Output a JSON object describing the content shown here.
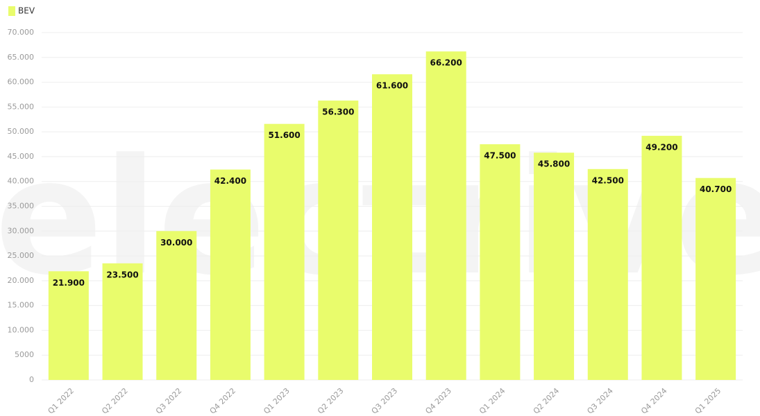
{
  "chart_data": {
    "type": "bar",
    "watermark": "electrive",
    "categories": [
      "Q1 2022",
      "Q2 2022",
      "Q3 2022",
      "Q4 2022",
      "Q1 2023",
      "Q2 2023",
      "Q3 2023",
      "Q4 2023",
      "Q1 2024",
      "Q2 2024",
      "Q3 2024",
      "Q4 2024",
      "Q1 2025"
    ],
    "series": [
      {
        "name": "BEV",
        "color": "#e9fc6c",
        "values": [
          21900,
          23500,
          30000,
          42400,
          51600,
          56300,
          61600,
          66200,
          47500,
          45800,
          42500,
          49200,
          40700
        ],
        "value_labels": [
          "21.900",
          "23.500",
          "30.000",
          "42.400",
          "51.600",
          "56.300",
          "61.600",
          "66.200",
          "47.500",
          "45.800",
          "42.500",
          "49.200",
          "40.700"
        ]
      }
    ],
    "ylim": [
      0,
      70000
    ],
    "yticks": [
      0,
      5000,
      {
        "value": 10000,
        "label": "10.000"
      },
      {
        "value": 15000,
        "label": "15.000"
      },
      {
        "value": 20000,
        "label": "20.000"
      },
      {
        "value": 25000,
        "label": "25.000"
      },
      {
        "value": 30000,
        "label": "30.000"
      },
      {
        "value": 35000,
        "label": "35.000"
      },
      {
        "value": 40000,
        "label": "40.000"
      },
      {
        "value": 45000,
        "label": "45.000"
      },
      {
        "value": 50000,
        "label": "50.000"
      },
      {
        "value": 55000,
        "label": "55.000"
      },
      {
        "value": 60000,
        "label": "60.000"
      },
      {
        "value": 65000,
        "label": "65.000"
      },
      {
        "value": 70000,
        "label": "70.000"
      }
    ],
    "grid": true,
    "legend": "top-left"
  }
}
